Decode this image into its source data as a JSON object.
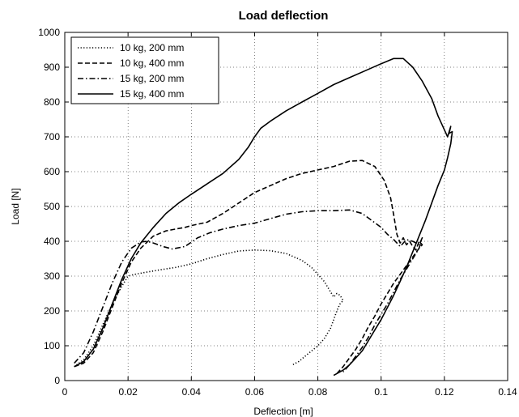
{
  "chart_data": {
    "type": "line",
    "title": "Load deflection",
    "xlabel": "Deflection [m]",
    "ylabel": "Load [N]",
    "xlim": [
      0,
      0.14
    ],
    "ylim": [
      0,
      1000
    ],
    "xticks": [
      "0",
      "0.02",
      "0.04",
      "0.06",
      "0.08",
      "0.1",
      "0.12",
      "0.14"
    ],
    "yticks": [
      "0",
      "100",
      "200",
      "300",
      "400",
      "500",
      "600",
      "700",
      "800",
      "900",
      "1000"
    ],
    "grid": true,
    "legend_position": "top-left",
    "series": [
      {
        "name": "10 kg, 200 mm",
        "style": "dotted",
        "color": "#000000",
        "x": [
          0.003,
          0.006,
          0.009,
          0.012,
          0.015,
          0.018,
          0.02,
          0.022,
          0.025,
          0.03,
          0.035,
          0.04,
          0.045,
          0.05,
          0.055,
          0.06,
          0.065,
          0.07,
          0.075,
          0.078,
          0.08,
          0.082,
          0.083,
          0.084,
          0.085,
          0.086,
          0.087,
          0.088,
          0.087,
          0.086,
          0.085,
          0.084,
          0.082,
          0.08,
          0.078,
          0.076,
          0.074,
          0.072
        ],
        "y": [
          40,
          60,
          100,
          160,
          220,
          270,
          300,
          305,
          310,
          318,
          325,
          335,
          350,
          362,
          372,
          375,
          373,
          365,
          345,
          325,
          305,
          285,
          270,
          255,
          240,
          250,
          245,
          230,
          220,
          200,
          175,
          150,
          120,
          100,
          85,
          70,
          55,
          45
        ]
      },
      {
        "name": "10 kg, 400 mm",
        "style": "dashed",
        "color": "#000000",
        "x": [
          0.003,
          0.006,
          0.009,
          0.012,
          0.015,
          0.018,
          0.021,
          0.024,
          0.028,
          0.032,
          0.035,
          0.038,
          0.04,
          0.045,
          0.05,
          0.055,
          0.06,
          0.065,
          0.07,
          0.075,
          0.08,
          0.085,
          0.09,
          0.094,
          0.098,
          0.101,
          0.103,
          0.104,
          0.105,
          0.106,
          0.107,
          0.108,
          0.109,
          0.11,
          0.111,
          0.112,
          0.113,
          0.112,
          0.11,
          0.108,
          0.106,
          0.104,
          0.102,
          0.1,
          0.098,
          0.096,
          0.094,
          0.092,
          0.09,
          0.088,
          0.086
        ],
        "y": [
          40,
          50,
          80,
          140,
          210,
          280,
          340,
          380,
          415,
          430,
          435,
          440,
          445,
          455,
          480,
          510,
          540,
          560,
          580,
          595,
          605,
          615,
          630,
          632,
          615,
          575,
          525,
          475,
          420,
          395,
          410,
          390,
          400,
          385,
          375,
          400,
          390,
          380,
          355,
          330,
          305,
          280,
          250,
          220,
          185,
          155,
          120,
          90,
          65,
          40,
          20
        ]
      },
      {
        "name": "15 kg, 200 mm",
        "style": "dashdot",
        "color": "#000000",
        "x": [
          0.003,
          0.006,
          0.009,
          0.012,
          0.015,
          0.018,
          0.021,
          0.024,
          0.026,
          0.028,
          0.031,
          0.034,
          0.038,
          0.042,
          0.046,
          0.05,
          0.055,
          0.06,
          0.065,
          0.07,
          0.075,
          0.08,
          0.085,
          0.09,
          0.094,
          0.097,
          0.1,
          0.102,
          0.104,
          0.106,
          0.108,
          0.11,
          0.112,
          0.113,
          0.112,
          0.11,
          0.108,
          0.106,
          0.104,
          0.102,
          0.1,
          0.098,
          0.096,
          0.094,
          0.092,
          0.09,
          0.088
        ],
        "y": [
          50,
          80,
          140,
          210,
          280,
          340,
          380,
          398,
          400,
          395,
          385,
          378,
          385,
          410,
          425,
          435,
          445,
          452,
          465,
          478,
          485,
          488,
          488,
          490,
          480,
          460,
          440,
          420,
          405,
          385,
          405,
          400,
          390,
          410,
          380,
          350,
          320,
          290,
          255,
          220,
          190,
          160,
          125,
          95,
          70,
          45,
          25
        ]
      },
      {
        "name": "15 kg, 400 mm",
        "style": "solid",
        "color": "#000000",
        "x": [
          0.003,
          0.006,
          0.009,
          0.012,
          0.015,
          0.018,
          0.021,
          0.024,
          0.028,
          0.032,
          0.036,
          0.04,
          0.045,
          0.05,
          0.055,
          0.058,
          0.06,
          0.062,
          0.065,
          0.07,
          0.075,
          0.08,
          0.085,
          0.09,
          0.095,
          0.1,
          0.104,
          0.107,
          0.11,
          0.113,
          0.116,
          0.118,
          0.12,
          0.121,
          0.122,
          0.1215,
          0.1225,
          0.122,
          0.121,
          0.12,
          0.118,
          0.116,
          0.114,
          0.112,
          0.11,
          0.108,
          0.106,
          0.104,
          0.102,
          0.1,
          0.098,
          0.096,
          0.094,
          0.092,
          0.09,
          0.088,
          0.086,
          0.085
        ],
        "y": [
          40,
          55,
          90,
          150,
          220,
          290,
          350,
          395,
          440,
          480,
          510,
          535,
          565,
          595,
          635,
          670,
          700,
          725,
          745,
          775,
          800,
          825,
          850,
          870,
          890,
          910,
          925,
          925,
          900,
          860,
          810,
          760,
          720,
          700,
          730,
          710,
          715,
          680,
          640,
          605,
          560,
          510,
          460,
          415,
          370,
          325,
          285,
          245,
          210,
          175,
          145,
          115,
          85,
          65,
          45,
          30,
          20,
          15
        ]
      }
    ]
  }
}
